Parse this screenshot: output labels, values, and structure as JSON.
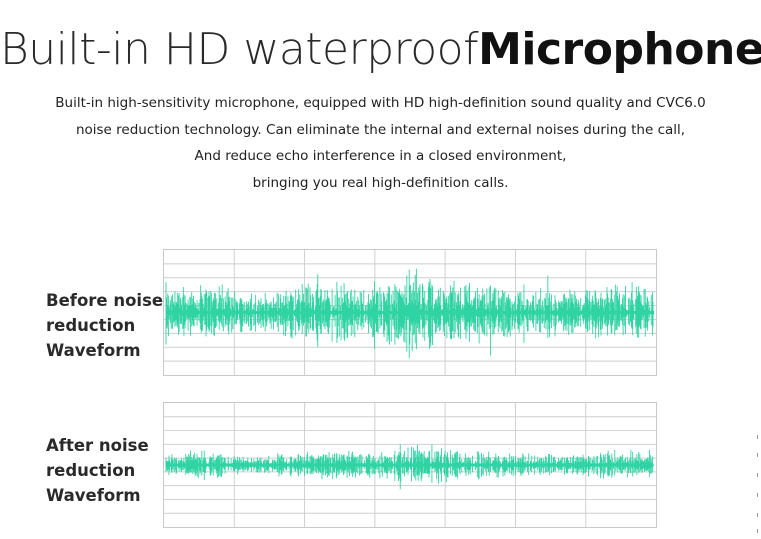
{
  "title": {
    "light": "Built-in HD waterproof",
    "bold": "Microphone"
  },
  "description": [
    "Built-in high-sensitivity microphone, equipped with HD high-definition sound quality and CVC6.0",
    "noise reduction technology. Can eliminate the internal and external noises during the call,",
    "And reduce echo interference in a closed environment,",
    "bringing you real high-definition calls."
  ],
  "panels": [
    {
      "label_lines": [
        "Before noise",
        "reduction",
        "Waveform"
      ],
      "amplitude": "high"
    },
    {
      "label_lines": [
        "After noise",
        "reduction",
        "Waveform"
      ],
      "amplitude": "low"
    }
  ],
  "colors": {
    "waveform": "#2fd3a4",
    "grid": "#cfcfcf",
    "text": "#222222"
  }
}
